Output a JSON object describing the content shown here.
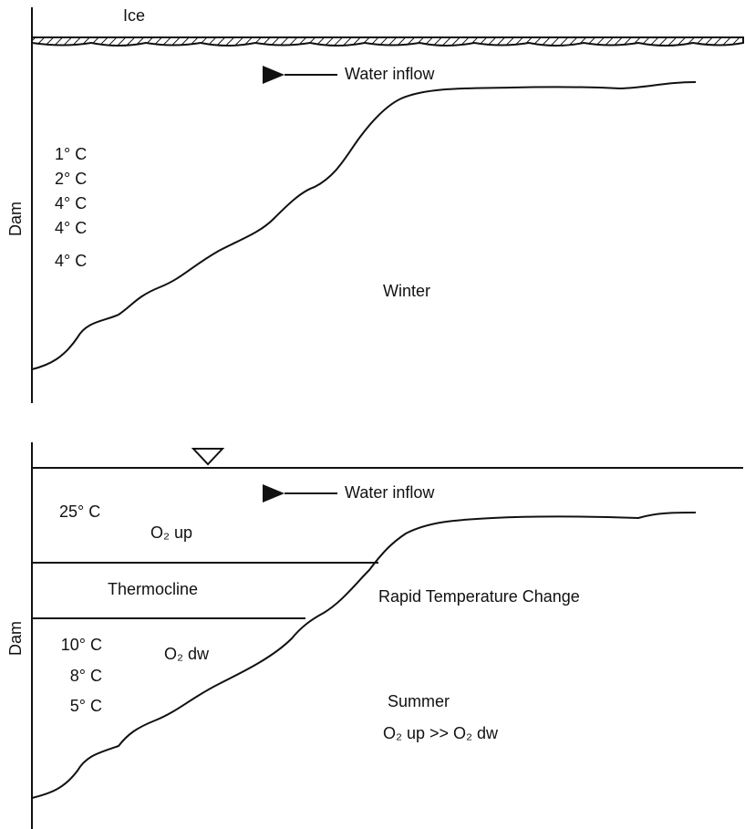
{
  "winter": {
    "ice_label": "Ice",
    "inflow_label": "Water inflow",
    "dam_label": "Dam",
    "temperatures": [
      "1° C",
      "2° C",
      "4° C",
      "4° C",
      "4° C"
    ],
    "season": "Winter"
  },
  "summer": {
    "inflow_label": "Water inflow",
    "surface_temp": "25° C",
    "upper_oxygen": "O₂ up",
    "thermocline": "Thermocline",
    "transition": "Rapid Temperature Change",
    "dam_label": "Dam",
    "temperatures": [
      "10° C",
      "8° C",
      "5° C"
    ],
    "lower_oxygen": "O₂ dw",
    "season": "Summer",
    "oxygen_relation": "O₂ up >> O₂ dw"
  }
}
